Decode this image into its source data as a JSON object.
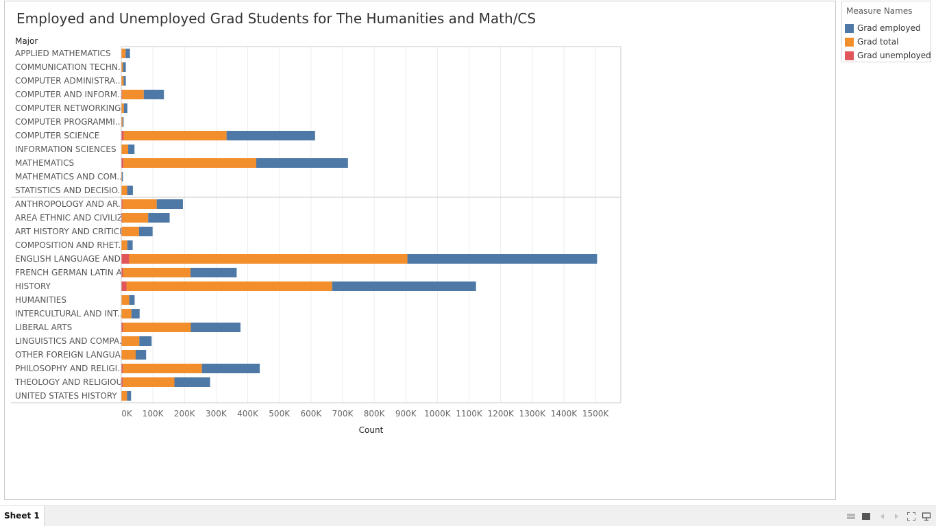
{
  "window": {
    "sheet_tab": "Sheet 1"
  },
  "legend": {
    "title": "Measure Names",
    "items": [
      {
        "label": "Grad employed",
        "color": "#4e79a7"
      },
      {
        "label": "Grad total",
        "color": "#f28e2b"
      },
      {
        "label": "Grad unemployed",
        "color": "#e15759"
      }
    ]
  },
  "chart_data": {
    "type": "bar",
    "orientation": "horizontal",
    "stacked": true,
    "title": "Employed and Unemployed Grad Students for The Humanities and Math/CS",
    "row_header": "Major",
    "xlabel": "Count",
    "xlim": [
      0,
      1580000
    ],
    "xticks": [
      0,
      100000,
      200000,
      300000,
      400000,
      500000,
      600000,
      700000,
      800000,
      900000,
      1000000,
      1100000,
      1200000,
      1300000,
      1400000,
      1500000
    ],
    "xtick_labels": [
      "0K",
      "100K",
      "200K",
      "300K",
      "400K",
      "500K",
      "600K",
      "700K",
      "800K",
      "900K",
      "1000K",
      "1100K",
      "1200K",
      "1300K",
      "1400K",
      "1500K"
    ],
    "groups": [
      {
        "categories": [
          "APPLIED MATHEMATICS",
          "COMMUNICATION TECHN..",
          "COMPUTER ADMINISTRA..",
          "COMPUTER AND INFORM..",
          "COMPUTER NETWORKING..",
          "COMPUTER PROGRAMMI..",
          "COMPUTER SCIENCE",
          "INFORMATION SCIENCES",
          "MATHEMATICS",
          "MATHEMATICS AND COM..",
          "STATISTICS AND DECISIO.."
        ]
      },
      {
        "categories": [
          "ANTHROPOLOGY AND AR..",
          "AREA ETHNIC AND CIVILIZ..",
          "ART HISTORY AND CRITICI..",
          "COMPOSITION AND RHET..",
          "ENGLISH LANGUAGE AND ..",
          "FRENCH GERMAN LATIN A..",
          "HISTORY",
          "HUMANITIES",
          "INTERCULTURAL AND INT..",
          "LIBERAL ARTS",
          "LINGUISTICS AND COMPA..",
          "OTHER FOREIGN LANGUA..",
          "PHILOSOPHY AND RELIGI..",
          "THEOLOGY AND RELIGIOU..",
          "UNITED STATES HISTORY"
        ]
      }
    ],
    "series": [
      {
        "name": "Grad unemployed",
        "color": "#e15759",
        "values": [
          500,
          300,
          300,
          3000,
          300,
          200,
          8000,
          800,
          7000,
          200,
          700,
          4000,
          3000,
          2000,
          1000,
          25000,
          6000,
          17000,
          1200,
          1000,
          6000,
          2000,
          1500,
          5000,
          5000,
          1000
        ]
      },
      {
        "name": "Grad total",
        "color": "#f28e2b",
        "values": [
          13000,
          5000,
          7000,
          68000,
          8000,
          4000,
          325000,
          21000,
          420000,
          2000,
          18000,
          108000,
          82000,
          54000,
          18000,
          880000,
          213000,
          650000,
          24000,
          31000,
          214000,
          55000,
          44000,
          250000,
          163000,
          17000
        ]
      },
      {
        "name": "Grad employed",
        "color": "#4e79a7",
        "values": [
          14000,
          9000,
          7000,
          64000,
          11000,
          3000,
          280000,
          20000,
          290000,
          3000,
          18000,
          83000,
          68000,
          43000,
          17000,
          600000,
          146000,
          455000,
          17000,
          26000,
          157000,
          39000,
          33000,
          183000,
          113000,
          13000
        ]
      }
    ]
  }
}
